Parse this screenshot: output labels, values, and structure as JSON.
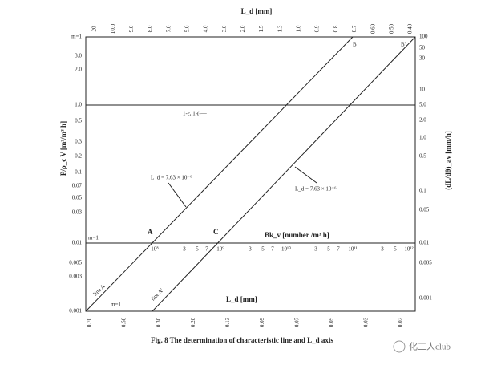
{
  "figure": {
    "top_axis_title": "L_d [mm]",
    "top_ticks": [
      "20",
      "10.0",
      "9.0",
      "8.0",
      "7.0",
      "5.0",
      "4.0",
      "3.0",
      "2.0",
      "1.5",
      "1.3",
      "1.0",
      "0.9",
      "0.8",
      "0.7",
      "0.60",
      "0.50",
      "0.40"
    ],
    "left_axis_title": "P/ρ_c V [m³/m³ h]",
    "left_ticks": [
      "m=1",
      "3.0",
      "2.0",
      "1.0",
      "0.5",
      "0.3",
      "0.2",
      "0.1",
      "0.07",
      "0.05",
      "0.03",
      "0.01",
      "0.005",
      "0.003",
      "0.001"
    ],
    "right_axis_title": "(dL/dθ)_av [mm/h]",
    "right_ticks": [
      "100",
      "50",
      "30",
      "10",
      "5.0",
      "2.0",
      "1.0",
      "0.5",
      "0.1",
      "0.05",
      "0.01",
      "0.005",
      "0.001"
    ],
    "bk_axis_title": "Bk_v [number /m³ h]",
    "bk_ticks": [
      "10⁸",
      "3",
      "5",
      "7",
      "10⁹",
      "3",
      "5",
      "7",
      "10¹⁰",
      "3",
      "5",
      "7",
      "10¹¹",
      "3",
      "5",
      "10¹²"
    ],
    "bottom_axis_title": "L_d [mm]",
    "bottom_ticks": [
      "0.70",
      "0.50",
      "0.30",
      "0.20",
      "0.13",
      "0.09",
      "0.07",
      "0.05",
      "0.03",
      "0.02"
    ],
    "annotations": {
      "b": "B",
      "b_prime": "B'",
      "epsilon": "1-ε, 1-(-—",
      "ld_left": "L_d = 7.63 × 10⁻⁶",
      "ld_right": "L_d = 7.63 × 10⁻⁶",
      "m1_mid": "m=1",
      "a": "A",
      "c": "C",
      "line_a": "line A",
      "line_a2": "line A'",
      "m1_low": "m=1"
    },
    "caption": "Fig. 8  The determination of characteristic line and L_d axis",
    "watermark": "化工人club"
  }
}
